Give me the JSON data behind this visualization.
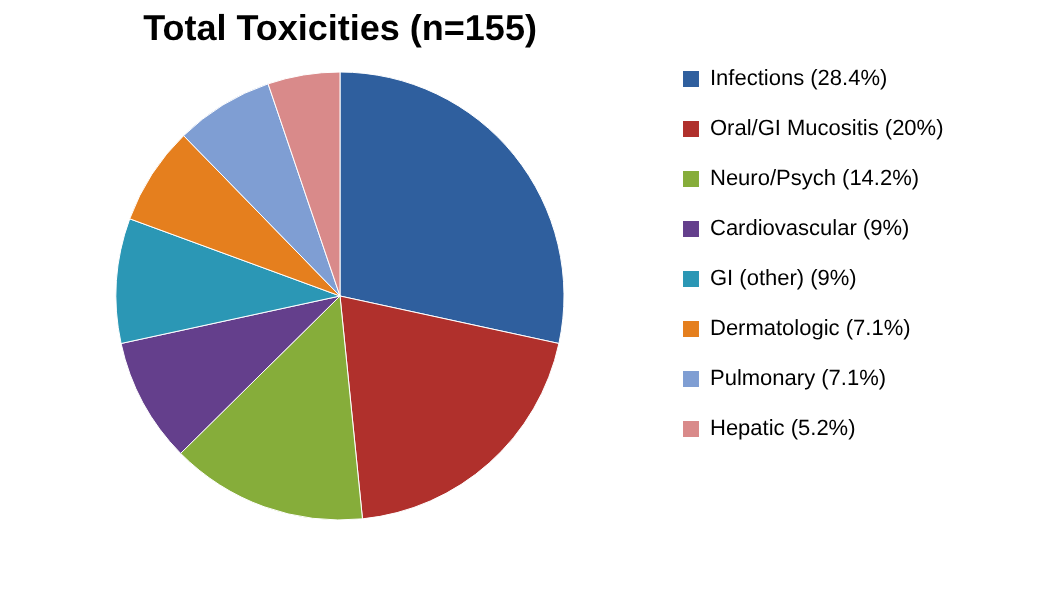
{
  "chart_data": {
    "type": "pie",
    "title": "Total Toxicities (n=155)",
    "categories": [
      "Infections (28.4%)",
      "Oral/GI Mucositis (20%)",
      "Neuro/Psych (14.2%)",
      "Cardiovascular (9%)",
      "GI (other) (9%)",
      "Dermatologic (7.1%)",
      "Pulmonary (7.1%)",
      "Hepatic (5.2%)"
    ],
    "values": [
      28.4,
      20,
      14.2,
      9,
      9,
      7.1,
      7.1,
      5.2
    ],
    "colors": [
      "#2f5f9e",
      "#b0302c",
      "#86ad3a",
      "#643f8c",
      "#2b97b5",
      "#e57f1e",
      "#7f9ed3",
      "#d98a8a"
    ],
    "legend": "right"
  }
}
